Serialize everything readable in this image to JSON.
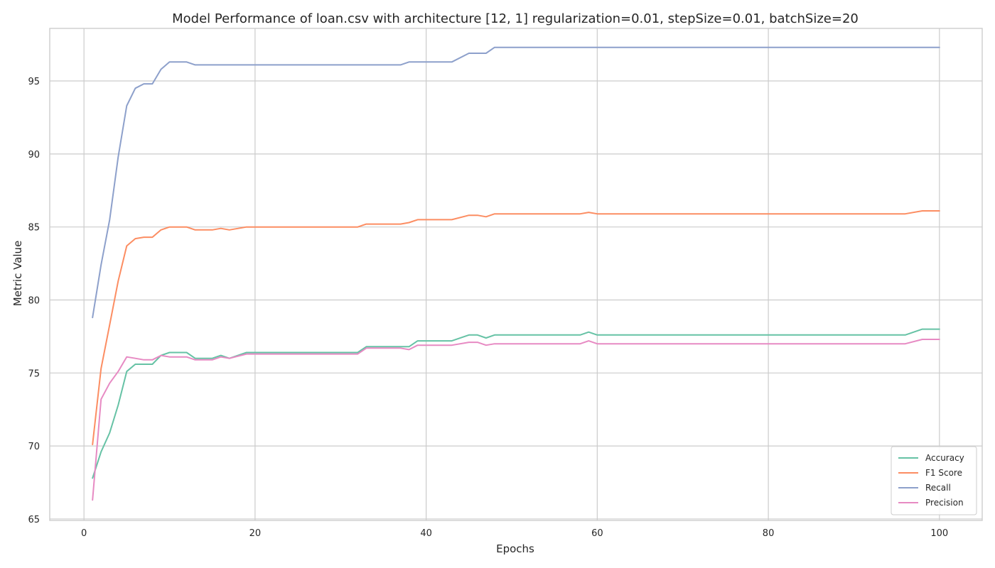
{
  "chart_data": {
    "type": "line",
    "title": "Model Performance of loan.csv with architecture [12, 1] regularization=0.01, stepSize=0.01, batchSize=20",
    "xlabel": "Epochs",
    "ylabel": "Metric Value",
    "xlim": [
      -4,
      105
    ],
    "ylim": [
      64.9,
      98.6
    ],
    "xticks": [
      0,
      20,
      40,
      60,
      80,
      100
    ],
    "yticks": [
      65,
      70,
      75,
      80,
      85,
      90,
      95
    ],
    "grid": true,
    "legend_position": "lower-right",
    "series": [
      {
        "name": "Accuracy",
        "color": "#66c2a5",
        "x": [
          1,
          2,
          3,
          4,
          5,
          6,
          7,
          8,
          9,
          10,
          12,
          13,
          15,
          16,
          17,
          19,
          32,
          33,
          38,
          39,
          43,
          45,
          46,
          47,
          48,
          58,
          59,
          60,
          96,
          98,
          100
        ],
        "values": [
          67.8,
          69.6,
          70.9,
          72.8,
          75.1,
          75.6,
          75.6,
          75.6,
          76.2,
          76.4,
          76.4,
          76.0,
          76.0,
          76.2,
          76.0,
          76.4,
          76.4,
          76.8,
          76.8,
          77.2,
          77.2,
          77.6,
          77.6,
          77.4,
          77.6,
          77.6,
          77.8,
          77.6,
          77.6,
          78.0,
          78.0
        ]
      },
      {
        "name": "F1 Score",
        "color": "#fc8d62",
        "x": [
          1,
          2,
          3,
          4,
          5,
          6,
          7,
          8,
          9,
          10,
          12,
          13,
          15,
          16,
          17,
          19,
          32,
          33,
          37,
          38,
          39,
          43,
          45,
          46,
          47,
          48,
          58,
          59,
          60,
          96,
          98,
          100
        ],
        "values": [
          70.1,
          75.3,
          78.3,
          81.3,
          83.7,
          84.2,
          84.3,
          84.3,
          84.8,
          85.0,
          85.0,
          84.8,
          84.8,
          84.9,
          84.8,
          85.0,
          85.0,
          85.2,
          85.2,
          85.3,
          85.5,
          85.5,
          85.8,
          85.8,
          85.7,
          85.9,
          85.9,
          86.0,
          85.9,
          85.9,
          86.1,
          86.1
        ]
      },
      {
        "name": "Recall",
        "color": "#8da0cb",
        "x": [
          1,
          2,
          3,
          4,
          5,
          6,
          7,
          8,
          9,
          10,
          12,
          13,
          37,
          38,
          43,
          45,
          47,
          48,
          100
        ],
        "values": [
          78.8,
          82.4,
          85.5,
          89.8,
          93.3,
          94.5,
          94.8,
          94.8,
          95.8,
          96.3,
          96.3,
          96.1,
          96.1,
          96.3,
          96.3,
          96.9,
          96.9,
          97.3,
          97.3
        ]
      },
      {
        "name": "Precision",
        "color": "#e78ac3",
        "x": [
          1,
          2,
          3,
          4,
          5,
          6,
          7,
          8,
          9,
          10,
          12,
          13,
          15,
          16,
          17,
          19,
          32,
          33,
          37,
          38,
          39,
          43,
          45,
          46,
          47,
          48,
          58,
          59,
          60,
          96,
          98,
          100
        ],
        "values": [
          66.3,
          73.2,
          74.3,
          75.1,
          76.1,
          76.0,
          75.9,
          75.9,
          76.2,
          76.1,
          76.1,
          75.9,
          75.9,
          76.1,
          76.0,
          76.3,
          76.3,
          76.7,
          76.7,
          76.6,
          76.9,
          76.9,
          77.1,
          77.1,
          76.9,
          77.0,
          77.0,
          77.2,
          77.0,
          77.0,
          77.3,
          77.3
        ]
      }
    ]
  }
}
